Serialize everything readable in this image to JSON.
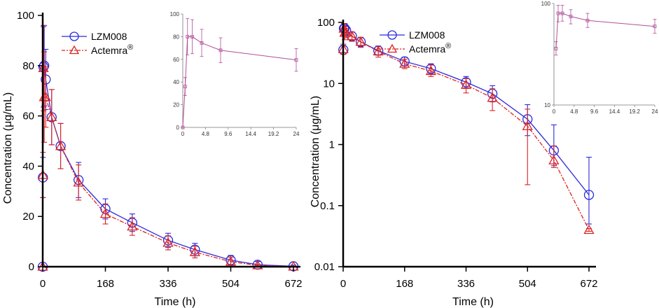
{
  "colors": {
    "lzm": "#2b2bd9",
    "actemra": "#dd2222",
    "axis": "#000000",
    "inset_line": "#b04f9a",
    "inset_axis": "#777777"
  },
  "chart_data": [
    {
      "type": "line",
      "name": "linear",
      "xlabel": "Time (h)",
      "ylabel": "Concentration (μg/mL)",
      "xlim": [
        0,
        672
      ],
      "ylim": [
        0,
        100
      ],
      "x_ticks": [
        "0",
        "168",
        "336",
        "504",
        "672"
      ],
      "y_ticks": [
        "0",
        "20",
        "40",
        "60",
        "80",
        "100"
      ],
      "legend": {
        "position": "top-center",
        "entries": [
          {
            "label": "LZM008",
            "sup": ""
          },
          {
            "label": "Actemra",
            "sup": "®"
          }
        ]
      },
      "series": [
        {
          "name": "LZM008",
          "x": [
            0,
            0.5,
            2,
            4,
            8,
            24,
            48,
            96,
            168,
            240,
            336,
            408,
            504,
            576,
            672
          ],
          "y": [
            0,
            35.5,
            79.5,
            80.0,
            74.5,
            59.5,
            48.0,
            34.5,
            23.0,
            17.5,
            10.5,
            6.8,
            2.6,
            0.8,
            0.15
          ],
          "err": [
            0,
            8,
            16,
            16,
            12,
            11,
            9,
            7,
            4,
            3.5,
            2.8,
            2.5,
            1.9,
            1.3,
            0.5
          ]
        },
        {
          "name": "Actemra®",
          "x": [
            0,
            0.5,
            2,
            4,
            8,
            24,
            48,
            96,
            168,
            240,
            336,
            408,
            504,
            576,
            672
          ],
          "y": [
            0,
            36.5,
            79.0,
            67.5,
            67.5,
            59.5,
            48.0,
            33.5,
            21.0,
            16.0,
            9.5,
            5.8,
            2.0,
            0.55,
            0.04
          ],
          "err": [
            0,
            9,
            17,
            18,
            12,
            11,
            9,
            7,
            4,
            3.5,
            2.8,
            2.3,
            1.8,
            0.3,
            0.01
          ]
        }
      ],
      "inset": {
        "xlim": [
          0,
          24
        ],
        "ylim": [
          0,
          100
        ],
        "x_ticks": [
          "0",
          "4.8",
          "9.6",
          "14.4",
          "19.2",
          "24"
        ],
        "y_ticks": [
          "0",
          "20",
          "40",
          "60",
          "80",
          "100"
        ],
        "x": [
          0,
          0.5,
          1,
          2,
          4,
          8,
          24
        ],
        "y": [
          0,
          36,
          80,
          80,
          74.5,
          68,
          59.5
        ],
        "err": [
          0,
          8,
          16,
          15,
          12,
          11,
          10
        ]
      }
    },
    {
      "type": "line",
      "name": "log",
      "xlabel": "Time (h)",
      "ylabel": "Concentration (μg/mL)",
      "xlim": [
        0,
        672
      ],
      "ylim": [
        0.01,
        100
      ],
      "yscale": "log",
      "x_ticks": [
        "0",
        "168",
        "336",
        "504",
        "672"
      ],
      "y_ticks": [
        "0.01",
        "0.1",
        "1",
        "10",
        "100"
      ],
      "legend": {
        "position": "top-center",
        "entries": [
          {
            "label": "LZM008",
            "sup": ""
          },
          {
            "label": "Actemra",
            "sup": "®"
          }
        ]
      },
      "series": [
        {
          "name": "LZM008",
          "x": [
            0.5,
            2,
            4,
            8,
            24,
            48,
            96,
            168,
            240,
            336,
            408,
            504,
            576,
            672
          ],
          "y": [
            35.5,
            79.5,
            80.0,
            74.5,
            59.5,
            48.0,
            34.5,
            23.0,
            17.5,
            10.5,
            6.8,
            2.6,
            0.8,
            0.15
          ],
          "lo": [
            30,
            67,
            67,
            62,
            50,
            40,
            29,
            19.5,
            14.5,
            8.5,
            5.0,
            1.4,
            0.45,
            0.05
          ],
          "hi": [
            42,
            96,
            96,
            86,
            70,
            57,
            41,
            27,
            21,
            13,
            9.2,
            4.5,
            2.1,
            0.62
          ]
        },
        {
          "name": "Actemra®",
          "x": [
            0.5,
            2,
            4,
            8,
            24,
            48,
            96,
            168,
            240,
            336,
            408,
            504,
            576,
            672
          ],
          "y": [
            36.5,
            79.0,
            67.5,
            67.5,
            59.5,
            48.0,
            33.5,
            21.0,
            16.0,
            9.5,
            5.8,
            2.0,
            0.55,
            0.04
          ],
          "lo": [
            30,
            63,
            52,
            56,
            49,
            39,
            27,
            17.5,
            13,
            7.0,
            3.6,
            0.22,
            0.42,
            0.038
          ],
          "hi": [
            44,
            96,
            86,
            80,
            70,
            57,
            40,
            25,
            20,
            12,
            8.2,
            3.8,
            0.95,
            0.042
          ]
        }
      ],
      "inset": {
        "xlim": [
          0,
          24
        ],
        "ylim": [
          10,
          100
        ],
        "yscale": "log",
        "x_ticks": [
          "0",
          "4.8",
          "9.6",
          "14.4",
          "19.2",
          "24"
        ],
        "y_ticks": [
          "10",
          "100"
        ],
        "x": [
          0.5,
          1,
          2,
          4,
          8,
          24
        ],
        "y": [
          36,
          80,
          80,
          74.5,
          68,
          59.5
        ],
        "lo": [
          31,
          66,
          67,
          63,
          58,
          51
        ],
        "hi": [
          42,
          96,
          96,
          87,
          80,
          70
        ]
      }
    }
  ]
}
